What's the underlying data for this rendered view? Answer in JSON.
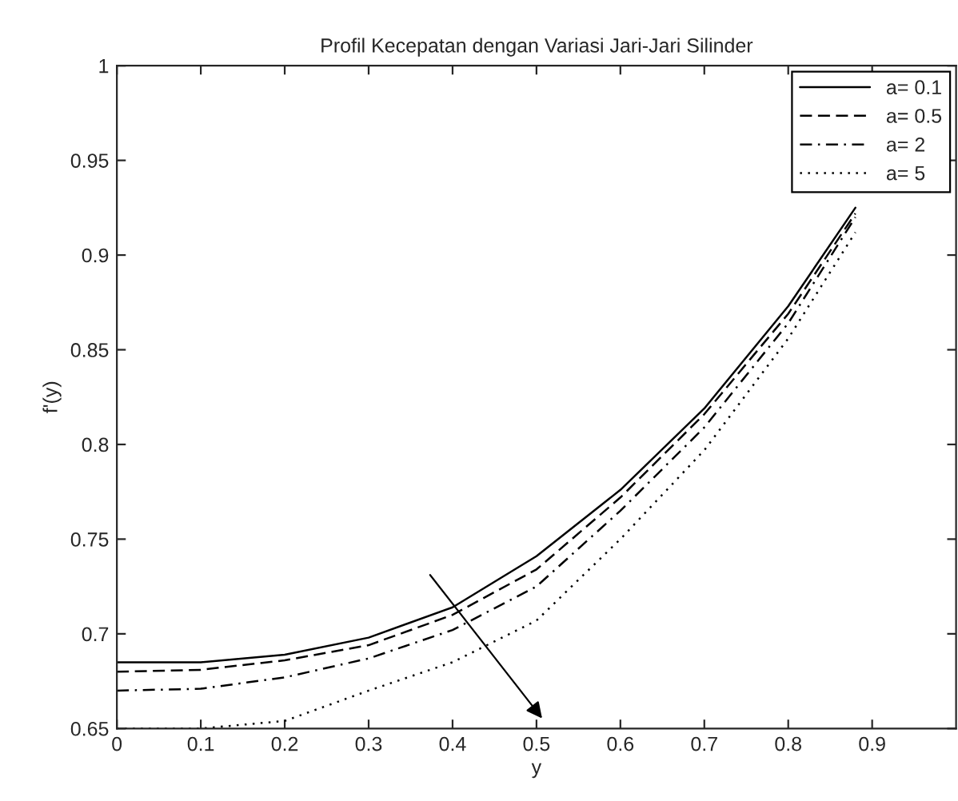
{
  "chart_data": {
    "type": "line",
    "title": "Profil Kecepatan dengan Variasi Jari-Jari Silinder",
    "xlabel": "y",
    "ylabel": "f'(y)",
    "x": [
      0,
      0.1,
      0.2,
      0.3,
      0.4,
      0.5,
      0.6,
      0.7,
      0.8,
      0.88
    ],
    "series": [
      {
        "name": "a= 0.1",
        "color": "#000000",
        "line_style": "solid",
        "values": [
          0.685,
          0.685,
          0.689,
          0.698,
          0.714,
          0.741,
          0.776,
          0.819,
          0.873,
          0.925
        ]
      },
      {
        "name": "a= 0.5",
        "color": "#000000",
        "line_style": "dashed",
        "values": [
          0.68,
          0.681,
          0.686,
          0.694,
          0.71,
          0.734,
          0.772,
          0.816,
          0.869,
          0.922
        ]
      },
      {
        "name": "a= 2",
        "color": "#000000",
        "line_style": "dashdot",
        "values": [
          0.67,
          0.671,
          0.677,
          0.687,
          0.702,
          0.725,
          0.765,
          0.809,
          0.864,
          0.92
        ]
      },
      {
        "name": "a= 5",
        "color": "#000000",
        "line_style": "dotted",
        "values": [
          0.65,
          0.65,
          0.654,
          0.67,
          0.685,
          0.707,
          0.75,
          0.797,
          0.856,
          0.912
        ]
      }
    ],
    "xlim": [
      0,
      1
    ],
    "xticks": [
      0,
      0.1,
      0.2,
      0.3,
      0.4,
      0.5,
      0.6,
      0.7,
      0.8,
      0.9
    ],
    "ylim": [
      0.65,
      1
    ],
    "yticks": [
      0.65,
      0.7,
      0.75,
      0.8,
      0.85,
      0.9,
      0.95,
      1
    ],
    "legend": "top right",
    "grid": false
  }
}
